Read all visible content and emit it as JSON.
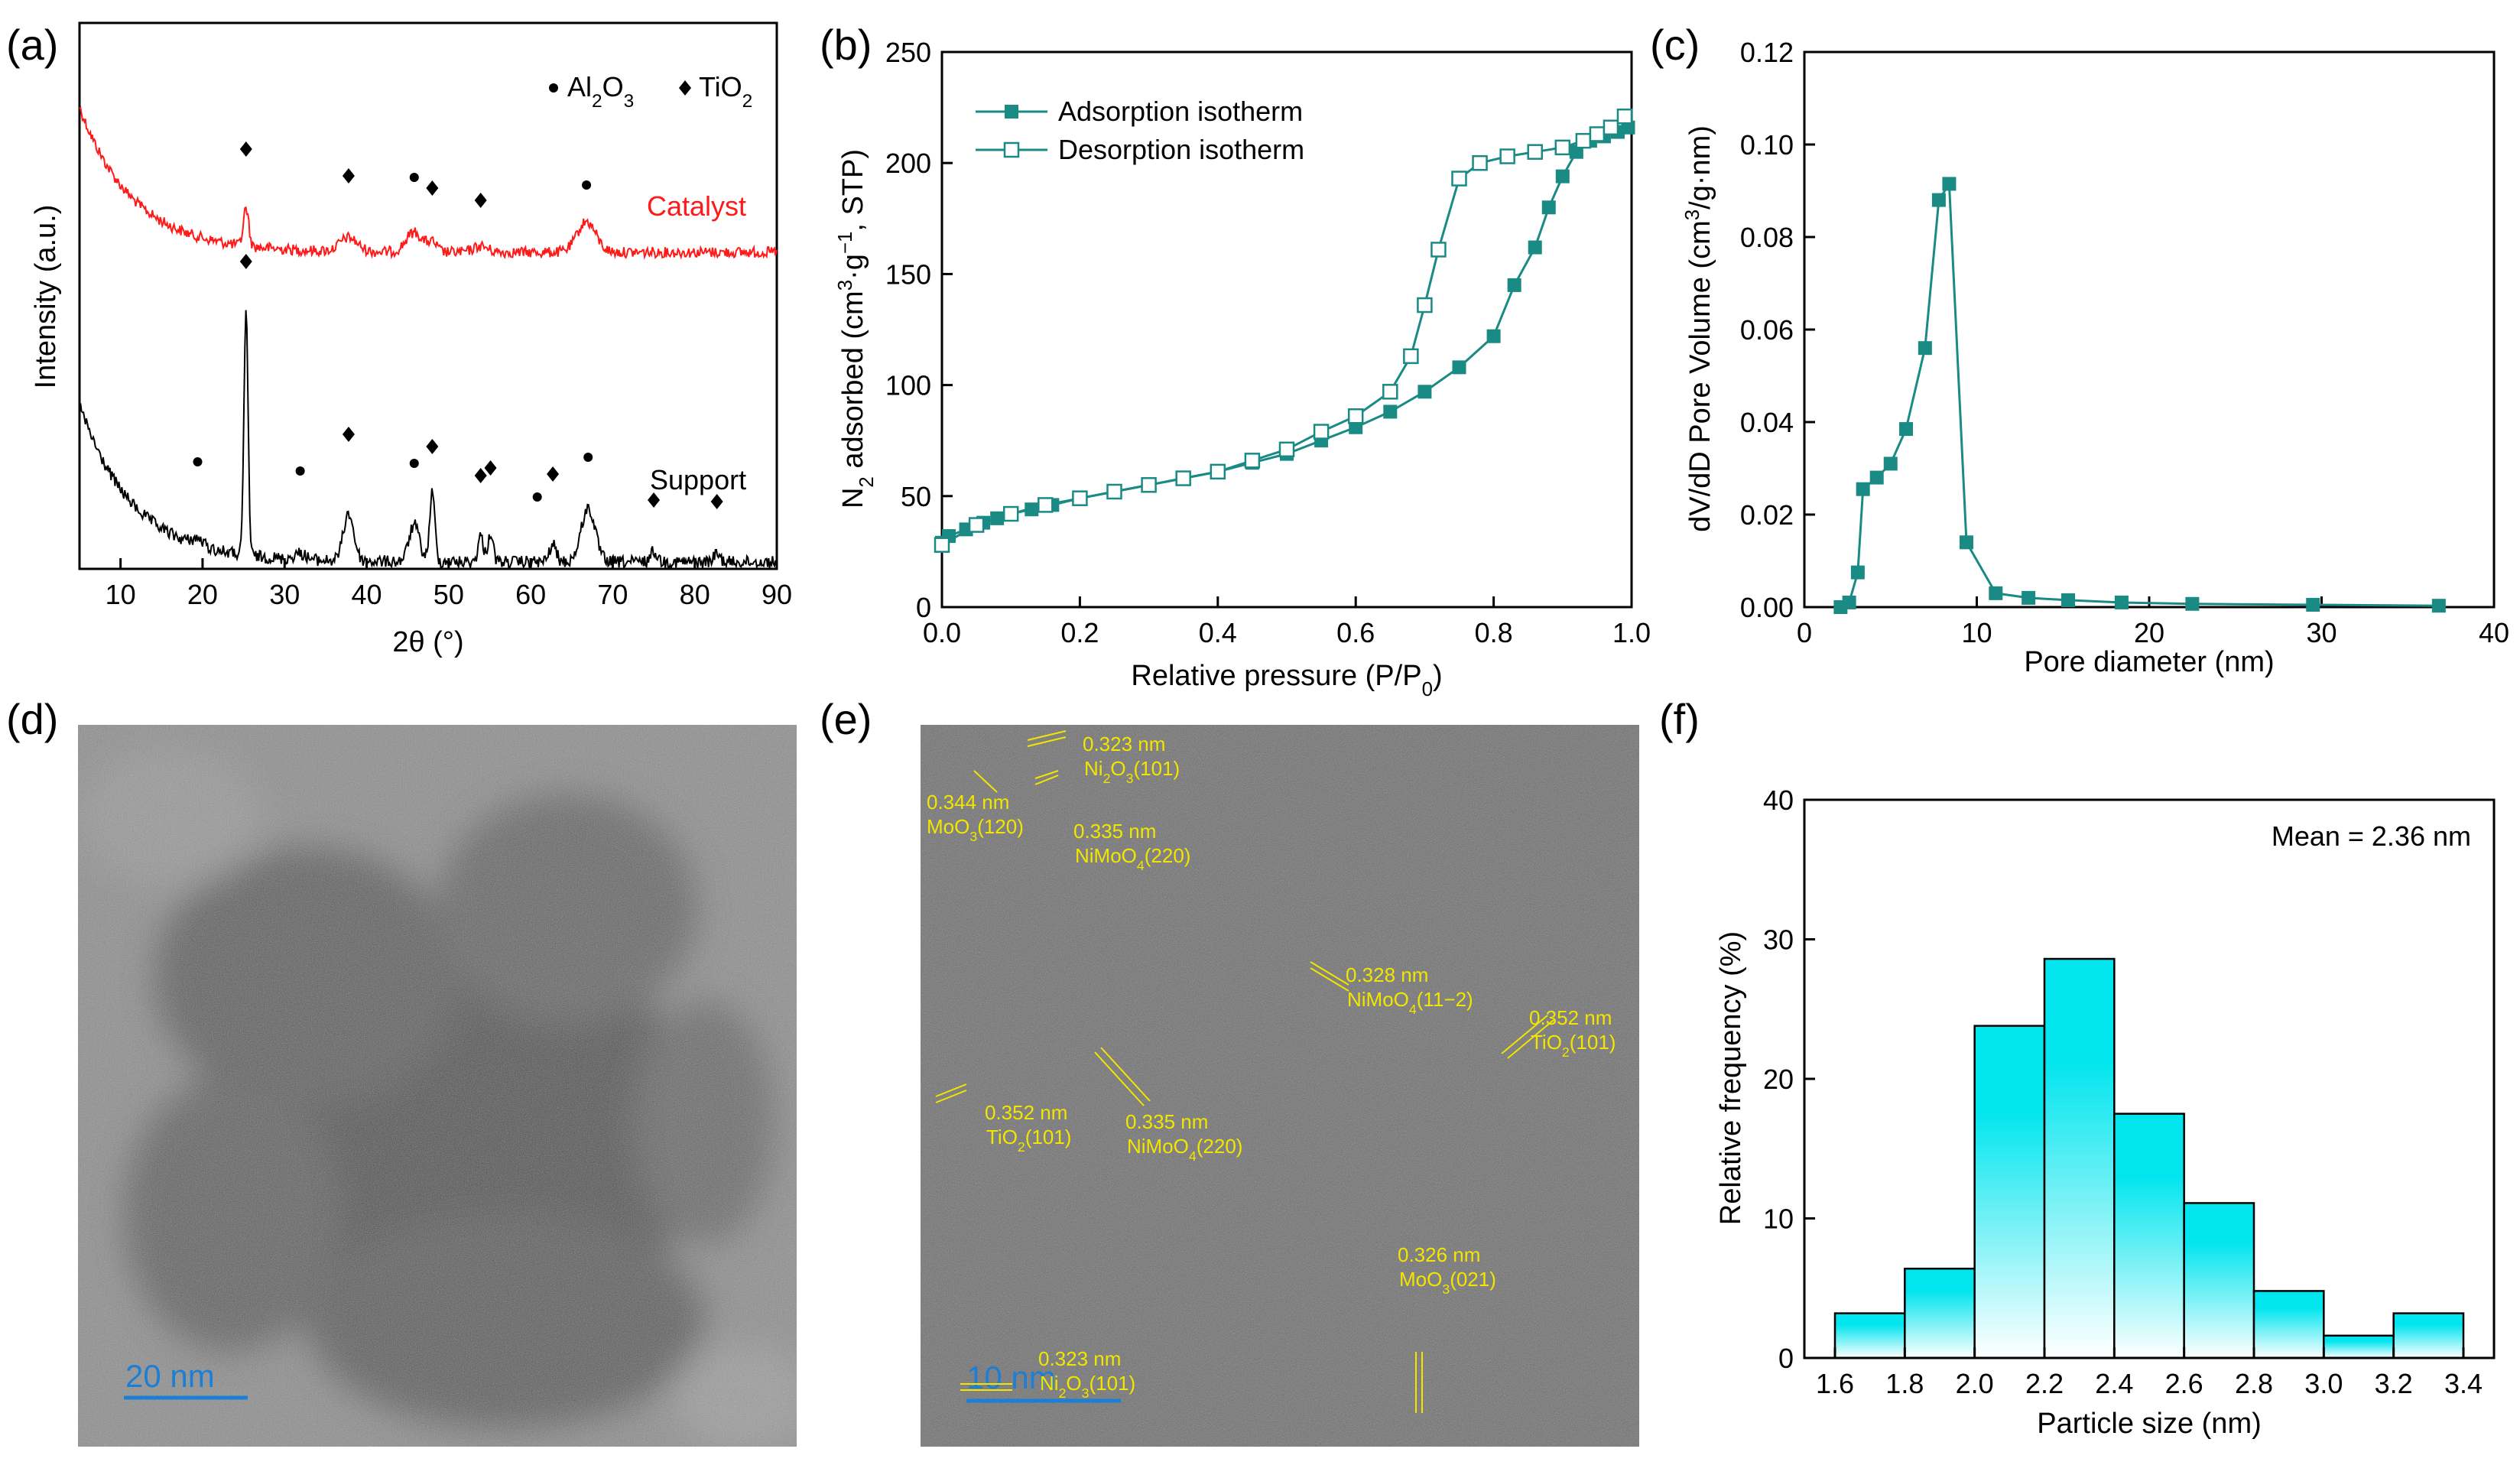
{
  "panels": {
    "a": "(a)",
    "b": "(b)",
    "c": "(c)",
    "d": "(d)",
    "e": "(e)",
    "f": "(f)"
  },
  "colors": {
    "catalyst": "#ff1a1a",
    "support": "#000000",
    "teal": "#1a8a84",
    "cyan": "#00e5ee",
    "annotation": "#f2e600",
    "scalebar": "#1c7fd6"
  },
  "chart_data": [
    {
      "id": "a",
      "type": "line",
      "title": "",
      "xlabel": "2θ (°)",
      "ylabel": "Intensity (a.u.)",
      "xlim": [
        5,
        90
      ],
      "xticks": [
        10,
        20,
        30,
        40,
        50,
        60,
        70,
        80,
        90
      ],
      "legend": {
        "al2o3": "Al2O3",
        "tio2": "TiO2"
      },
      "series": [
        {
          "name": "Catalyst",
          "color": "#ff1a1a",
          "peaks_al2o3": [
            45.8,
            66.8
          ],
          "peaks_tio2": [
            25.3,
            37.8,
            48.0,
            53.9
          ]
        },
        {
          "name": "Support",
          "color": "#000000",
          "peaks_al2o3": [
            19.4,
            31.9,
            45.8,
            60.8,
            67.0
          ],
          "peaks_tio2": [
            25.3,
            37.8,
            48.0,
            53.9,
            55.1,
            62.7,
            75.0,
            82.7
          ]
        }
      ]
    },
    {
      "id": "b",
      "type": "line",
      "xlabel": "Relative pressure (P/P0)",
      "ylabel": "N2 adsorbed (cm3·g−1, STP)",
      "xlim": [
        0,
        1.0
      ],
      "ylim": [
        0,
        250
      ],
      "xticks": [
        0.0,
        0.2,
        0.4,
        0.6,
        0.8,
        1.0
      ],
      "xtick_labels": [
        "0.0",
        "0.2",
        "0.4",
        "0.6",
        "0.8",
        "1.0"
      ],
      "yticks": [
        0,
        50,
        100,
        150,
        200,
        250
      ],
      "series": [
        {
          "name": "Adsorption isotherm",
          "marker": "filled-square",
          "x": [
            0.0,
            0.01,
            0.035,
            0.06,
            0.08,
            0.1,
            0.13,
            0.16,
            0.2,
            0.25,
            0.3,
            0.35,
            0.4,
            0.45,
            0.5,
            0.55,
            0.6,
            0.65,
            0.7,
            0.75,
            0.8,
            0.83,
            0.86,
            0.88,
            0.9,
            0.92,
            0.94,
            0.96,
            0.98,
            0.995
          ],
          "y": [
            29,
            32,
            35,
            38,
            40,
            42,
            44,
            46,
            49,
            52,
            55,
            58,
            61,
            65,
            69,
            75,
            81,
            88,
            97,
            108,
            122,
            145,
            162,
            180,
            194,
            205,
            210,
            212,
            214,
            216
          ]
        },
        {
          "name": "Desorption isotherm",
          "marker": "open-square",
          "x": [
            0.0,
            0.05,
            0.1,
            0.15,
            0.2,
            0.25,
            0.3,
            0.35,
            0.4,
            0.45,
            0.5,
            0.55,
            0.6,
            0.65,
            0.68,
            0.7,
            0.72,
            0.75,
            0.78,
            0.82,
            0.86,
            0.9,
            0.93,
            0.95,
            0.97,
            0.99
          ],
          "y": [
            28,
            37,
            42,
            46,
            49,
            52,
            55,
            58,
            61,
            66,
            71,
            79,
            86,
            97,
            113,
            136,
            161,
            193,
            200,
            203,
            205,
            207,
            210,
            213,
            216,
            221
          ]
        }
      ]
    },
    {
      "id": "c",
      "type": "line",
      "xlabel": "Pore diameter (nm)",
      "ylabel": "dV/dD Pore Volume (cm3/g·nm)",
      "xlim": [
        0,
        40
      ],
      "ylim": [
        0,
        0.12
      ],
      "xticks": [
        0,
        10,
        20,
        30,
        40
      ],
      "yticks": [
        0.0,
        0.02,
        0.04,
        0.06,
        0.08,
        0.1,
        0.12
      ],
      "ytick_labels": [
        "0.00",
        "0.02",
        "0.04",
        "0.06",
        "0.08",
        "0.10",
        "0.12"
      ],
      "series": [
        {
          "name": "Pore size distribution",
          "marker": "filled-square",
          "x": [
            2.1,
            2.6,
            3.1,
            3.4,
            4.2,
            5.0,
            5.9,
            7.0,
            7.8,
            8.4,
            9.4,
            11.1,
            13.0,
            15.3,
            18.4,
            22.5,
            29.5,
            36.8
          ],
          "y": [
            0.0,
            0.001,
            0.0075,
            0.0255,
            0.028,
            0.031,
            0.0385,
            0.056,
            0.088,
            0.0915,
            0.014,
            0.003,
            0.002,
            0.0015,
            0.001,
            0.0007,
            0.0005,
            0.0003
          ]
        }
      ]
    },
    {
      "id": "f",
      "type": "bar",
      "xlabel": "Particle size (nm)",
      "ylabel": "Relative frequency (%)",
      "xlim": [
        1.6,
        3.4
      ],
      "ylim": [
        0,
        40
      ],
      "xticks": [
        1.6,
        1.8,
        2.0,
        2.2,
        2.4,
        2.6,
        2.8,
        3.0,
        3.2,
        3.4
      ],
      "xtick_labels": [
        "1.6",
        "1.8",
        "2.0",
        "2.2",
        "2.4",
        "2.6",
        "2.8",
        "3.0",
        "3.2",
        "3.4"
      ],
      "yticks": [
        0,
        10,
        20,
        30,
        40
      ],
      "bin_edges": [
        1.6,
        1.8,
        2.0,
        2.2,
        2.4,
        2.6,
        2.8,
        3.0,
        3.2,
        3.4
      ],
      "values": [
        3.2,
        6.4,
        23.8,
        28.6,
        17.5,
        11.1,
        4.8,
        1.6,
        3.2
      ],
      "annotation": "Mean = 2.36 nm"
    }
  ],
  "tem_d": {
    "scalebar": "20 nm"
  },
  "tem_e": {
    "scalebar": "10 nm",
    "annotations": [
      {
        "d": "0.323 nm",
        "plane": "Ni2O3(101)"
      },
      {
        "d": "0.344 nm",
        "plane": "MoO3(120)"
      },
      {
        "d": "0.335 nm",
        "plane": "NiMoO4(220)"
      },
      {
        "d": "0.328 nm",
        "plane": "NiMoO4(11−2)"
      },
      {
        "d": "0.352 nm",
        "plane": "TiO2(101)"
      },
      {
        "d": "0.352 nm",
        "plane": "TiO2(101)"
      },
      {
        "d": "0.335 nm",
        "plane": "NiMoO4(220)"
      },
      {
        "d": "0.323 nm",
        "plane": "Ni2O3(101)"
      },
      {
        "d": "0.326 nm",
        "plane": "MoO3(021)"
      }
    ]
  }
}
